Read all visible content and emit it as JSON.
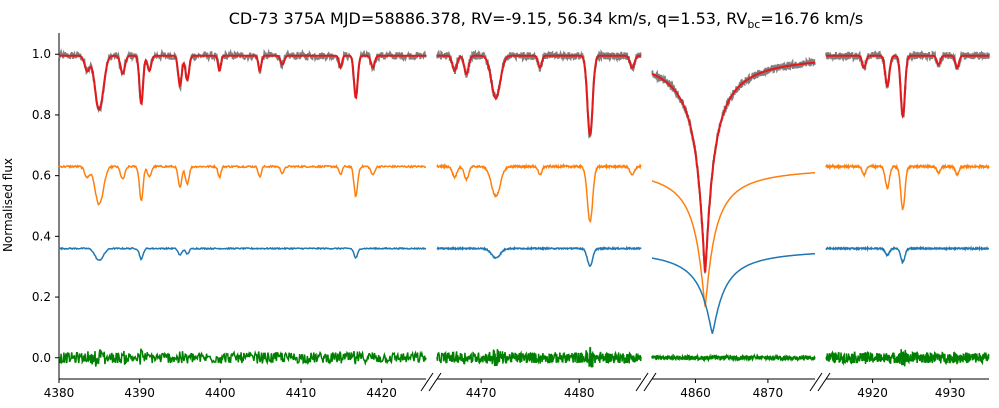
{
  "chart_data": {
    "type": "line",
    "title": "CD-73 375A MJD=58886.378, RV=-9.15, 56.34 km/s, q=1.53, RV",
    "title_subscript": "bc",
    "title_tail": "=16.76 km/s",
    "ylabel": "Normalised flux",
    "xlabel": "",
    "ylim": [
      -0.07,
      1.07
    ],
    "y_ticks": [
      0.0,
      0.2,
      0.4,
      0.6,
      0.8,
      1.0
    ],
    "y_tick_labels": [
      "0.0",
      "0.2",
      "0.4",
      "0.6",
      "0.8",
      "1.0"
    ],
    "grid": false,
    "legend": "none",
    "broken_x_axis": true,
    "series_colors": {
      "observed": "#808080",
      "model": "#e31a1c",
      "primary": "#ff7f0e",
      "secondary": "#1f77b4",
      "residual": "#008000"
    },
    "panels": [
      {
        "xlim": [
          4380,
          4425.5
        ],
        "x_ticks": [
          4380,
          4390,
          4400,
          4410,
          4420
        ],
        "x_tick_labels": [
          "4380",
          "4390",
          "4400",
          "4410",
          "4420"
        ],
        "lines": [
          [
            4383.5,
            0.05,
            0.7
          ],
          [
            4384.7,
            0.09,
            0.9
          ],
          [
            4385.2,
            0.12,
            1.0
          ],
          [
            4387.9,
            0.06,
            0.6
          ],
          [
            4390.2,
            0.16,
            0.5
          ],
          [
            4391.2,
            0.05,
            0.5
          ],
          [
            4395.0,
            0.1,
            0.5
          ],
          [
            4395.9,
            0.08,
            0.5
          ],
          [
            4399.9,
            0.05,
            0.4
          ],
          [
            4404.9,
            0.05,
            0.4
          ],
          [
            4407.7,
            0.03,
            0.5
          ],
          [
            4414.9,
            0.04,
            0.4
          ],
          [
            4416.8,
            0.14,
            0.5
          ],
          [
            4418.9,
            0.04,
            0.5
          ]
        ]
      },
      {
        "xlim": [
          4465.5,
          4486.3
        ],
        "x_ticks": [
          4470,
          4480
        ],
        "x_tick_labels": [
          "4470",
          "4480"
        ],
        "lines": [
          [
            4467.3,
            0.05,
            0.5
          ],
          [
            4468.5,
            0.06,
            0.5
          ],
          [
            4471.5,
            0.14,
            1.0
          ],
          [
            4476.0,
            0.04,
            0.4
          ],
          [
            4481.1,
            0.26,
            0.6
          ],
          [
            4485.4,
            0.04,
            0.5
          ]
        ]
      },
      {
        "xlim": [
          4854.0,
          4876.5
        ],
        "x_ticks": [
          4860,
          4870
        ],
        "x_tick_labels": [
          "4860",
          "4870"
        ],
        "balmer_center": 4861.33
      },
      {
        "xlim": [
          4914.0,
          4935.0
        ],
        "x_ticks": [
          4920,
          4930
        ],
        "x_tick_labels": [
          "4920",
          "4930"
        ],
        "lines": [
          [
            4918.9,
            0.04,
            0.5
          ],
          [
            4921.9,
            0.1,
            0.6
          ],
          [
            4923.9,
            0.2,
            0.6
          ],
          [
            4928.5,
            0.03,
            0.5
          ],
          [
            4930.9,
            0.04,
            0.5
          ]
        ]
      }
    ],
    "series": [
      {
        "key": "observed",
        "baseline": 1.0
      },
      {
        "key": "model",
        "baseline": 0.995
      },
      {
        "key": "primary",
        "baseline": 0.63
      },
      {
        "key": "secondary",
        "baseline": 0.36
      },
      {
        "key": "residual",
        "baseline": 0.0
      }
    ]
  }
}
